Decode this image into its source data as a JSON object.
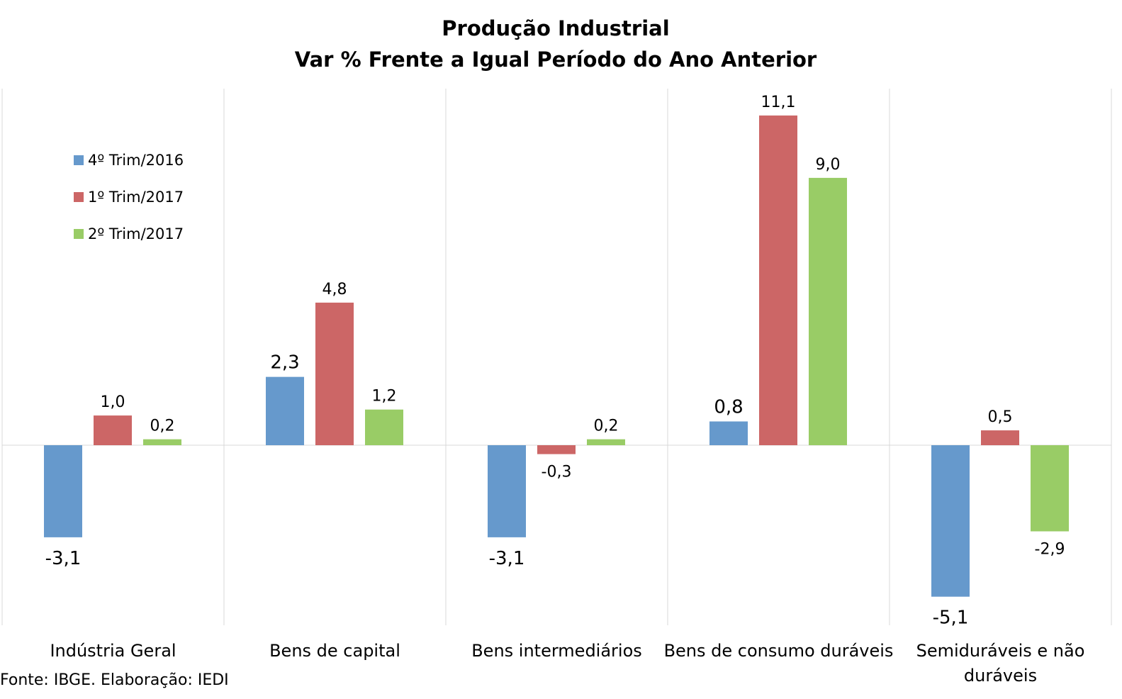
{
  "chart_data": {
    "type": "bar",
    "title": [
      "Produção Industrial",
      "Var % Frente a Igual Período do Ano Anterior"
    ],
    "categories": [
      "Indústria Geral",
      "Bens de capital",
      "Bens intermediários",
      "Bens de consumo duráveis",
      "Semiduráveis e não duráveis"
    ],
    "series": [
      {
        "name": "4º Trim/2016",
        "color": "#6699CC",
        "values": [
          -3.1,
          2.3,
          -3.1,
          0.8,
          -5.1
        ],
        "labels": [
          "-3,1",
          "2,3",
          "-3,1",
          "0,8",
          "-5,1"
        ]
      },
      {
        "name": "1º Trim/2017",
        "color": "#CC6666",
        "values": [
          1.0,
          4.8,
          -0.3,
          11.1,
          0.5
        ],
        "labels": [
          "1,0",
          "4,8",
          "-0,3",
          "11,1",
          "0,5"
        ]
      },
      {
        "name": "2º Trim/2017",
        "color": "#99CC66",
        "values": [
          0.2,
          1.2,
          0.2,
          9.0,
          -2.9
        ],
        "labels": [
          "0,2",
          "1,2",
          "0,2",
          "9,0",
          "-2,9"
        ]
      }
    ],
    "xlabel": "",
    "ylabel": "",
    "ylim": [
      -6,
      12
    ],
    "grid": "vertical category separators",
    "legend": "top-left"
  },
  "source": "Fonte: IBGE. Elaboração: IEDI"
}
